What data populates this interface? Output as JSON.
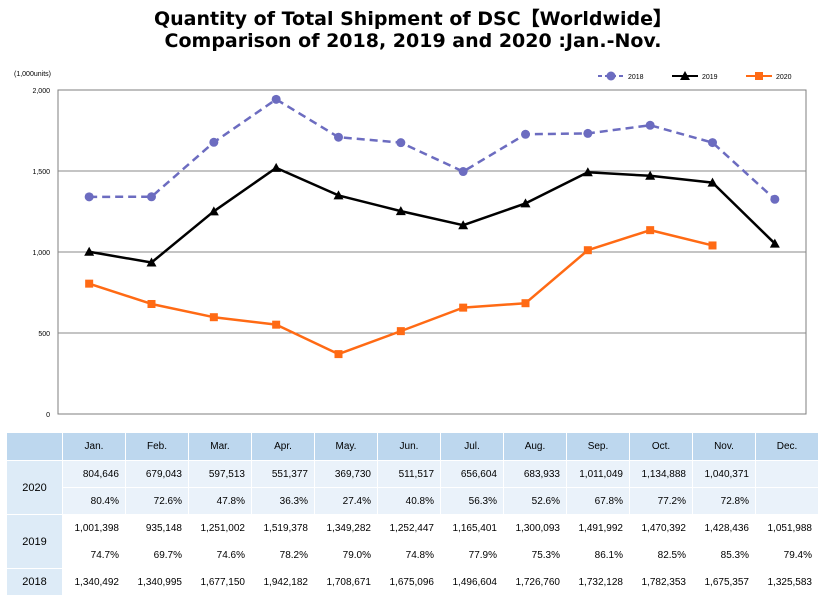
{
  "title_line1": "Quantity of Total Shipment of DSC【Worldwide】",
  "title_line2": "Comparison of 2018, 2019 and 2020 :Jan.-Nov.",
  "chart_data": {
    "type": "line",
    "unit_label": "(1,000units)",
    "categories": [
      "Jan.",
      "Feb.",
      "Mar.",
      "Apr.",
      "May.",
      "Jun.",
      "Jul.",
      "Aug.",
      "Sep.",
      "Oct.",
      "Nov.",
      "Dec."
    ],
    "ylim": [
      0,
      2000
    ],
    "yticks": [
      0,
      500,
      1000,
      1500,
      2000
    ],
    "ytick_labels": [
      "0",
      "500",
      "1,000",
      "1,500",
      "2,000"
    ],
    "grid": true,
    "legend_position": "top-right",
    "series": [
      {
        "name": "2018",
        "color": "#6c6cc0",
        "dash": true,
        "marker": "circle",
        "values": [
          1340.492,
          1340.995,
          1677.15,
          1942.182,
          1708.671,
          1675.096,
          1496.604,
          1726.76,
          1732.128,
          1782.353,
          1675.357,
          1325.583
        ]
      },
      {
        "name": "2019",
        "color": "#000000",
        "dash": false,
        "marker": "triangle",
        "values": [
          1001.398,
          935.148,
          1251.002,
          1519.378,
          1349.282,
          1252.447,
          1165.401,
          1300.093,
          1491.992,
          1470.392,
          1428.436,
          1051.988
        ]
      },
      {
        "name": "2020",
        "color": "#ff6a14",
        "dash": false,
        "marker": "square",
        "values": [
          804.646,
          679.043,
          597.513,
          551.377,
          369.73,
          511.517,
          656.604,
          683.933,
          1011.049,
          1134.888,
          1040.371,
          null
        ]
      }
    ]
  },
  "table": {
    "months": [
      "Jan.",
      "Feb.",
      "Mar.",
      "Apr.",
      "May.",
      "Jun.",
      "Jul.",
      "Aug.",
      "Sep.",
      "Oct.",
      "Nov.",
      "Dec."
    ],
    "rows": [
      {
        "year": "2020",
        "values": [
          "804,646",
          "679,043",
          "597,513",
          "551,377",
          "369,730",
          "511,517",
          "656,604",
          "683,933",
          "1,011,049",
          "1,134,888",
          "1,040,371",
          ""
        ],
        "percents": [
          "80.4%",
          "72.6%",
          "47.8%",
          "36.3%",
          "27.4%",
          "40.8%",
          "56.3%",
          "52.6%",
          "67.8%",
          "77.2%",
          "72.8%",
          ""
        ]
      },
      {
        "year": "2019",
        "values": [
          "1,001,398",
          "935,148",
          "1,251,002",
          "1,519,378",
          "1,349,282",
          "1,252,447",
          "1,165,401",
          "1,300,093",
          "1,491,992",
          "1,470,392",
          "1,428,436",
          "1,051,988"
        ],
        "percents": [
          "74.7%",
          "69.7%",
          "74.6%",
          "78.2%",
          "79.0%",
          "74.8%",
          "77.9%",
          "75.3%",
          "86.1%",
          "82.5%",
          "85.3%",
          "79.4%"
        ]
      },
      {
        "year": "2018",
        "values": [
          "1,340,492",
          "1,340,995",
          "1,677,150",
          "1,942,182",
          "1,708,671",
          "1,675,096",
          "1,496,604",
          "1,726,760",
          "1,732,128",
          "1,782,353",
          "1,675,357",
          "1,325,583"
        ]
      }
    ]
  }
}
